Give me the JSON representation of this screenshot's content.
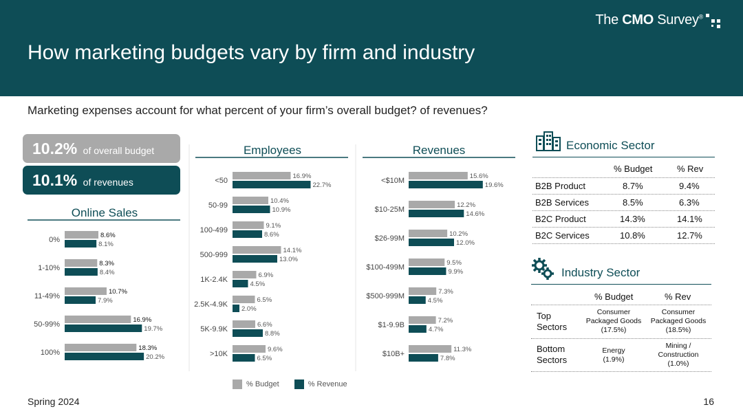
{
  "header": {
    "title": "How marketing budgets vary by firm and industry",
    "brand_prefix": "The ",
    "brand_bold": "CMO",
    "brand_suffix": " Survey",
    "brand_mark": "®"
  },
  "question": "Marketing expenses account for what percent of your firm’s overall budget? of revenues?",
  "stats": {
    "budget_value": "10.2%",
    "budget_label": "of overall budget",
    "revenue_value": "10.1%",
    "revenue_label": "of revenues"
  },
  "colors": {
    "budget": "#a9a9a9",
    "revenue": "#0e4d56",
    "header": "#0e4d56"
  },
  "chart_data": [
    {
      "type": "bar",
      "orientation": "horizontal",
      "title": "Online Sales",
      "categories": [
        "0%",
        "1-10%",
        "11-49%",
        "50-99%",
        "100%"
      ],
      "series": [
        {
          "name": "% Budget",
          "values": [
            8.6,
            8.3,
            10.7,
            16.9,
            18.3
          ],
          "labels": [
            "8.6%",
            "8.3%",
            "10.7%",
            "16.9%",
            "18.3%"
          ]
        },
        {
          "name": "% Revenue",
          "values": [
            8.1,
            8.4,
            7.9,
            19.7,
            20.2
          ],
          "labels": [
            "8.1%",
            "8.4%",
            "7.9%",
            "19.7%",
            "20.2%"
          ]
        }
      ]
    },
    {
      "type": "bar",
      "orientation": "horizontal",
      "title": "Employees",
      "categories": [
        "<50",
        "50-99",
        "100-499",
        "500-999",
        "1K-2.4K",
        "2.5K-4.9K",
        "5K-9.9K",
        ">10K"
      ],
      "series": [
        {
          "name": "% Budget",
          "values": [
            16.9,
            10.4,
            9.1,
            14.1,
            6.9,
            6.5,
            6.6,
            9.6
          ],
          "labels": [
            "16.9%",
            "10.4%",
            "9.1%",
            "14.1%",
            "6.9%",
            "6.5%",
            "6.6%",
            "9.6%"
          ]
        },
        {
          "name": "% Revenue",
          "values": [
            22.7,
            10.9,
            8.6,
            13.0,
            4.5,
            2.0,
            8.8,
            6.5
          ],
          "labels": [
            "22.7%",
            "10.9%",
            "8.6%",
            "13.0%",
            "4.5%",
            "2.0%",
            "8.8%",
            "6.5%"
          ]
        }
      ]
    },
    {
      "type": "bar",
      "orientation": "horizontal",
      "title": "Revenues",
      "categories": [
        "<$10M",
        "$10-25M",
        "$26-99M",
        "$100-499M",
        "$500-999M",
        "$1-9.9B",
        "$10B+"
      ],
      "series": [
        {
          "name": "% Budget",
          "values": [
            15.6,
            12.2,
            10.2,
            9.5,
            7.3,
            7.2,
            11.3
          ],
          "labels": [
            "15.6%",
            "12.2%",
            "10.2%",
            "9.5%",
            "7.3%",
            "7.2%",
            "11.3%"
          ]
        },
        {
          "name": "% Revenue",
          "values": [
            19.6,
            14.6,
            12.0,
            9.9,
            4.5,
            4.7,
            7.8
          ],
          "labels": [
            "19.6%",
            "14.6%",
            "12.0%",
            "9.9%",
            "4.5%",
            "4.7%",
            "7.8%"
          ]
        }
      ]
    }
  ],
  "legend": {
    "budget": "% Budget",
    "revenue": "% Revenue"
  },
  "economic": {
    "title": "Economic Sector",
    "col_budget": "% Budget",
    "col_rev": "% Rev",
    "rows": [
      {
        "label": "B2B Product",
        "budget": "8.7%",
        "rev": "9.4%"
      },
      {
        "label": "B2B Services",
        "budget": "8.5%",
        "rev": "6.3%"
      },
      {
        "label": "B2C Product",
        "budget": "14.3%",
        "rev": "14.1%"
      },
      {
        "label": "B2C Services",
        "budget": "10.8%",
        "rev": "12.7%"
      }
    ]
  },
  "industry": {
    "title": "Industry Sector",
    "col_budget": "% Budget",
    "col_rev": "% Rev",
    "top_label_1": "Top",
    "top_label_2": "Sectors",
    "top_budget_1": "Consumer",
    "top_budget_2": "Packaged Goods",
    "top_budget_3": "(17.5%)",
    "top_rev_1": "Consumer",
    "top_rev_2": "Packaged Goods",
    "top_rev_3": "(18.5%)",
    "bottom_label_1": "Bottom",
    "bottom_label_2": "Sectors",
    "bottom_budget_1": "Energy",
    "bottom_budget_2": "(1.9%)",
    "bottom_rev_1": "Mining /",
    "bottom_rev_2": "Construction",
    "bottom_rev_3": "(1.0%)"
  },
  "footer": {
    "left": "Spring 2024",
    "right": "16"
  }
}
